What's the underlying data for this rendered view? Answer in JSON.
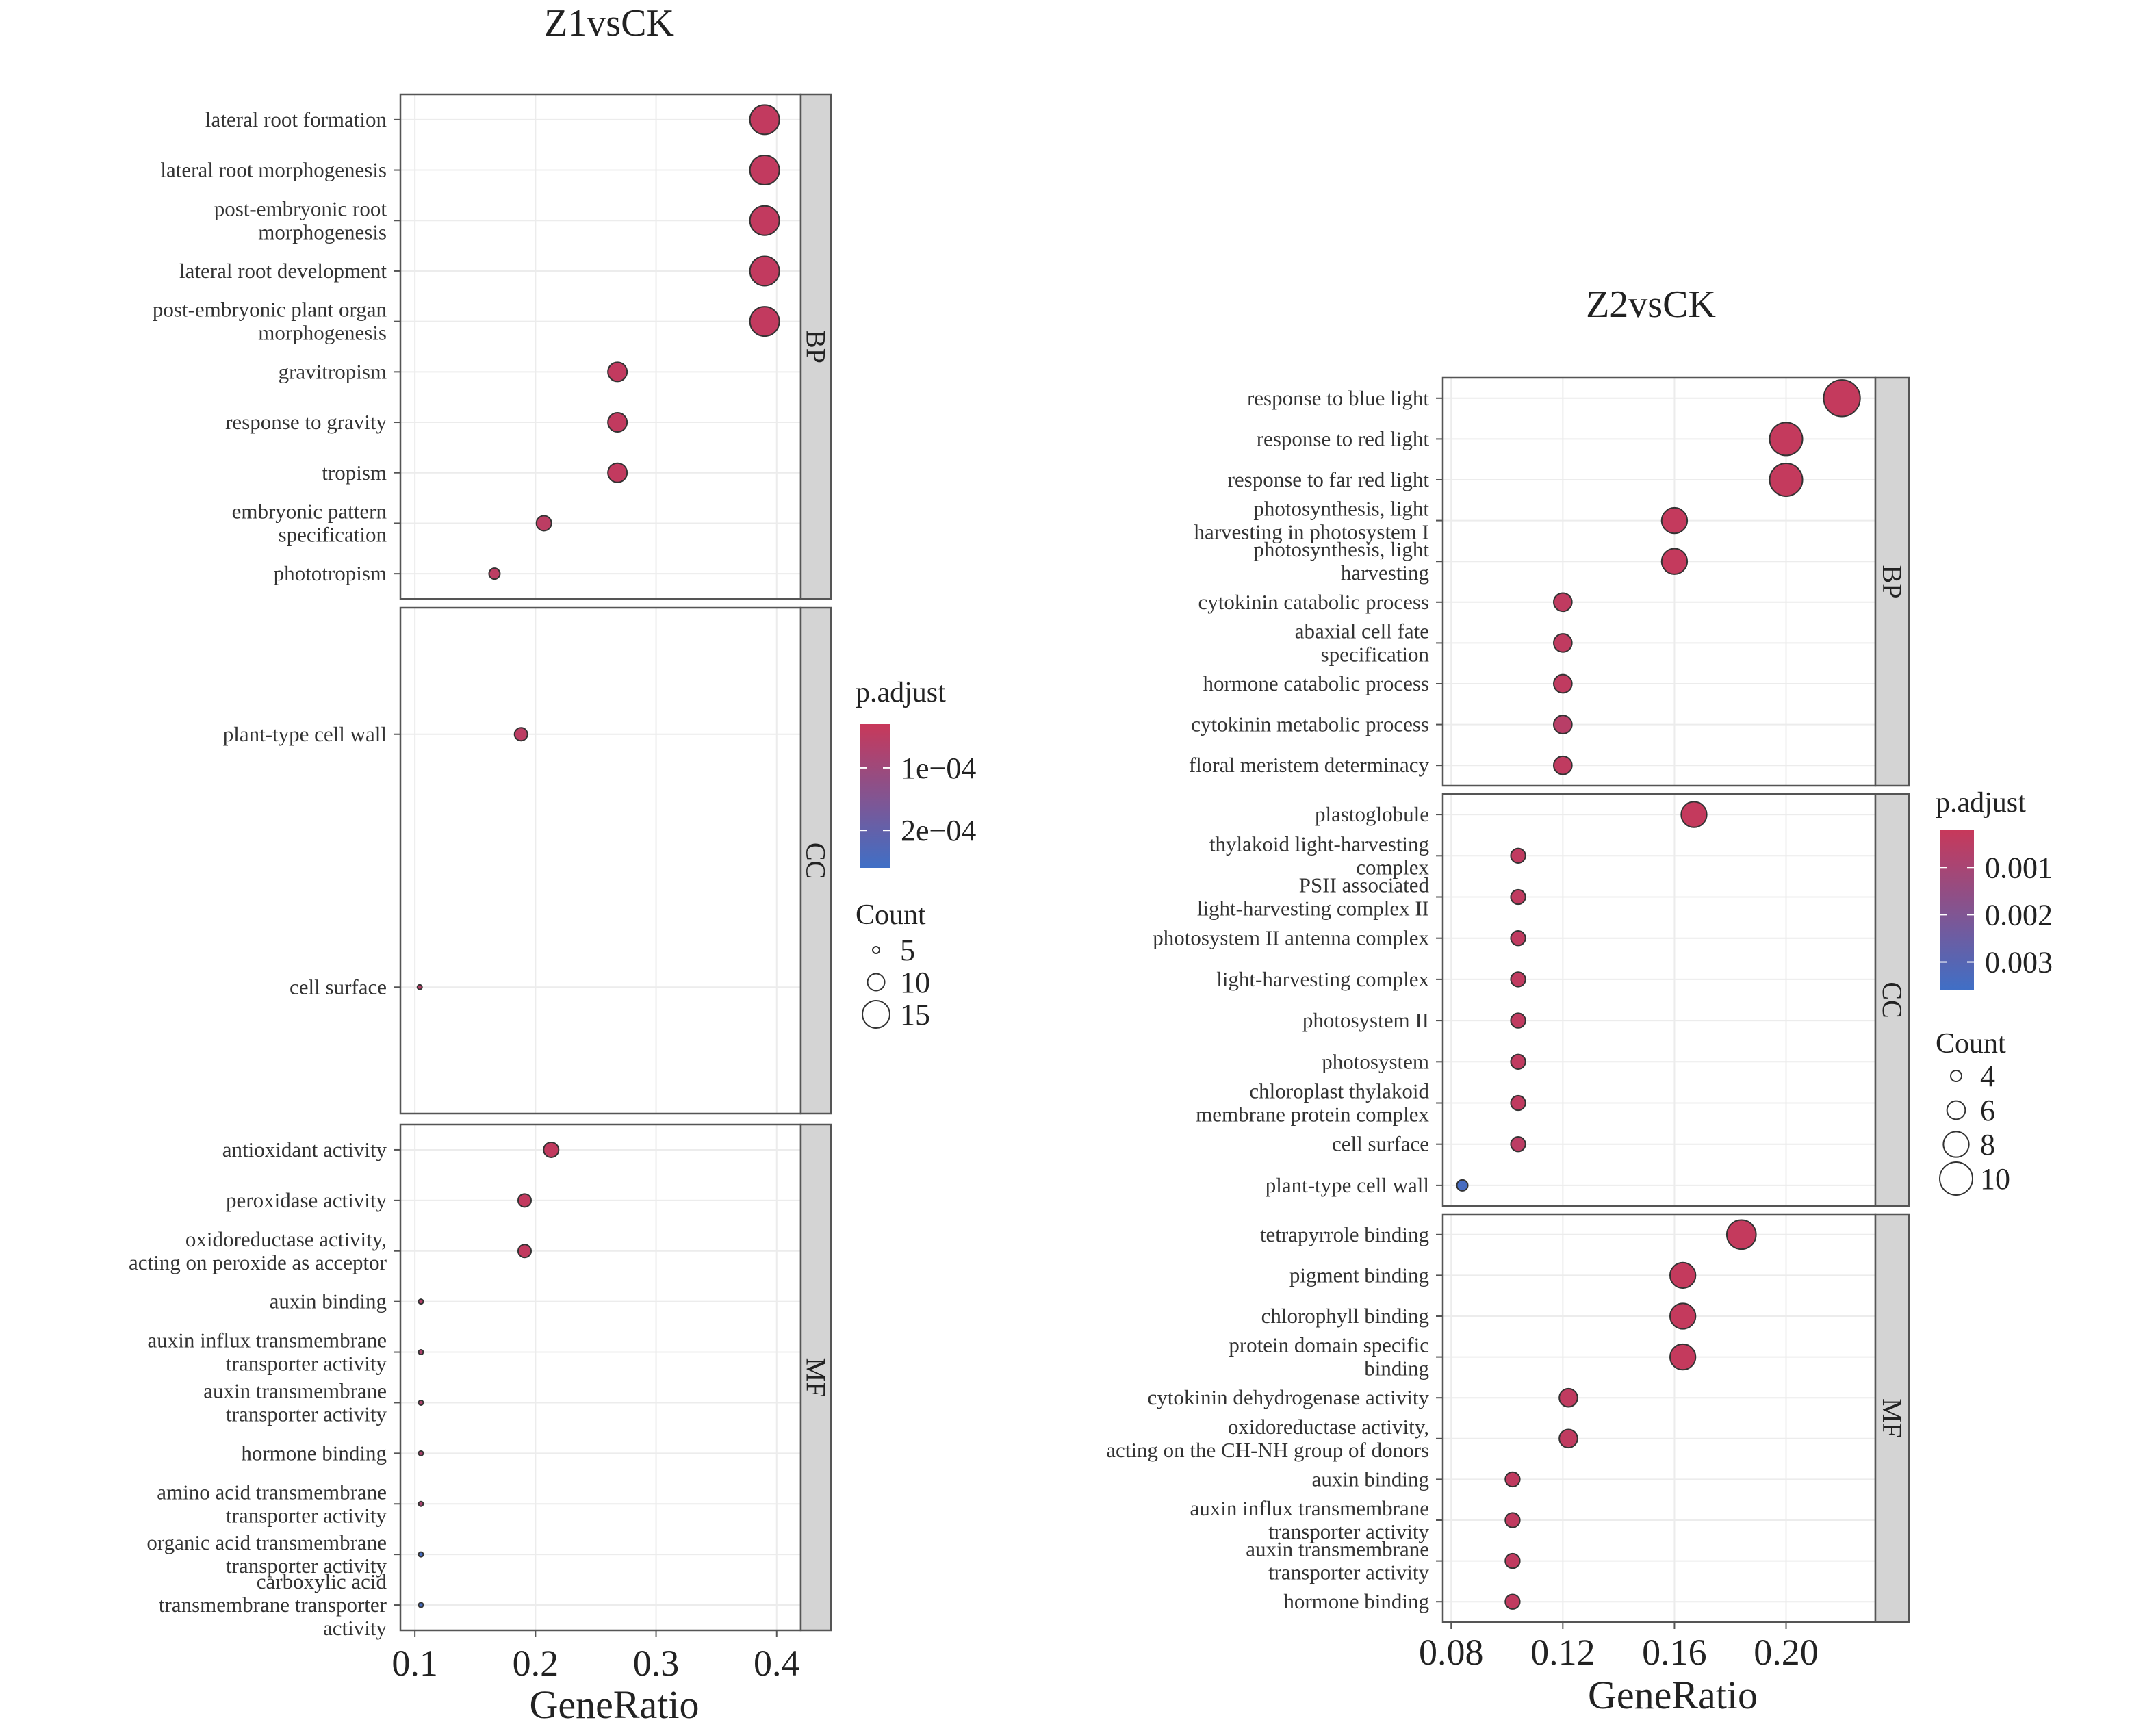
{
  "chart_data": [
    {
      "type": "scatter",
      "title": "Z1vsCK",
      "xlabel": "GeneRatio",
      "xlim": [
        0.088,
        0.42
      ],
      "x_ticks": [
        "0.1",
        "0.2",
        "0.3",
        "0.4"
      ],
      "x_tick_values": [
        0.1,
        0.2,
        0.3,
        0.4
      ],
      "grid": true,
      "colors": {
        "low_padj": "#c8385a",
        "high_padj": "#3f6fc6"
      },
      "color_legend": {
        "title": "p.adjust",
        "labels": [
          "1e−04",
          "2e−04"
        ],
        "values": [
          0.0001,
          0.0002
        ],
        "range": [
          3e-05,
          0.00026
        ]
      },
      "size_legend": {
        "title": "Count",
        "labels": [
          "5",
          "10",
          "15"
        ],
        "values": [
          5,
          10,
          15
        ]
      },
      "facets": [
        {
          "name": "BP",
          "points": [
            {
              "term": "lateral root formation",
              "x": 0.39,
              "count": 16,
              "padj": 4e-05
            },
            {
              "term": "lateral root morphogenesis",
              "x": 0.39,
              "count": 16,
              "padj": 4e-05
            },
            {
              "term": "post-embryonic root\nmorphogenesis",
              "x": 0.39,
              "count": 16,
              "padj": 4e-05
            },
            {
              "term": "lateral root development",
              "x": 0.39,
              "count": 16,
              "padj": 4e-05
            },
            {
              "term": "post-embryonic plant organ\nmorphogenesis",
              "x": 0.39,
              "count": 16,
              "padj": 4e-05
            },
            {
              "term": "gravitropism",
              "x": 0.268,
              "count": 11,
              "padj": 4e-05
            },
            {
              "term": "response to gravity",
              "x": 0.268,
              "count": 11,
              "padj": 4e-05
            },
            {
              "term": "tropism",
              "x": 0.268,
              "count": 11,
              "padj": 4e-05
            },
            {
              "term": "embryonic pattern\nspecification",
              "x": 0.207,
              "count": 9,
              "padj": 5e-05
            },
            {
              "term": "phototropism",
              "x": 0.166,
              "count": 7,
              "padj": 5e-05
            }
          ]
        },
        {
          "name": "CC",
          "points": [
            {
              "term": "plant-type cell wall",
              "x": 0.188,
              "count": 8,
              "padj": 5e-05
            },
            {
              "term": "cell surface",
              "x": 0.104,
              "count": 4,
              "padj": 6e-05
            }
          ]
        },
        {
          "name": "MF",
          "points": [
            {
              "term": "antioxidant activity",
              "x": 0.213,
              "count": 9,
              "padj": 4e-05
            },
            {
              "term": "peroxidase activity",
              "x": 0.191,
              "count": 8,
              "padj": 4e-05
            },
            {
              "term": "oxidoreductase activity,\nacting on peroxide as acceptor",
              "x": 0.191,
              "count": 8,
              "padj": 4e-05
            },
            {
              "term": "auxin binding",
              "x": 0.105,
              "count": 4,
              "padj": 6e-05
            },
            {
              "term": "auxin influx transmembrane\ntransporter activity",
              "x": 0.105,
              "count": 4,
              "padj": 7e-05
            },
            {
              "term": "auxin transmembrane\ntransporter activity",
              "x": 0.105,
              "count": 4,
              "padj": 7e-05
            },
            {
              "term": "hormone binding",
              "x": 0.105,
              "count": 4,
              "padj": 7e-05
            },
            {
              "term": "amino acid transmembrane\ntransporter activity",
              "x": 0.105,
              "count": 4,
              "padj": 8e-05
            },
            {
              "term": "organic acid transmembrane\ntransporter activity",
              "x": 0.105,
              "count": 4,
              "padj": 0.00025
            },
            {
              "term": "carboxylic acid\ntransmembrane transporter\nactivity",
              "x": 0.105,
              "count": 4,
              "padj": 0.00025
            }
          ]
        }
      ]
    },
    {
      "type": "scatter",
      "title": "Z2vsCK",
      "xlabel": "GeneRatio",
      "xlim": [
        0.077,
        0.232
      ],
      "x_ticks": [
        "0.08",
        "0.12",
        "0.16",
        "0.20"
      ],
      "x_tick_values": [
        0.08,
        0.12,
        0.16,
        0.2
      ],
      "grid": true,
      "colors": {
        "low_padj": "#c8385a",
        "high_padj": "#3f6fc6"
      },
      "color_legend": {
        "title": "p.adjust",
        "labels": [
          "0.001",
          "0.002",
          "0.003"
        ],
        "values": [
          0.001,
          0.002,
          0.003
        ],
        "range": [
          0.0002,
          0.0036
        ]
      },
      "size_legend": {
        "title": "Count",
        "labels": [
          "4",
          "6",
          "8",
          "10"
        ],
        "values": [
          4,
          6,
          8,
          10
        ]
      },
      "facets": [
        {
          "name": "BP",
          "points": [
            {
              "term": "response to blue light",
              "x": 0.22,
              "count": 11,
              "padj": 0.0003
            },
            {
              "term": "response to red light",
              "x": 0.2,
              "count": 10,
              "padj": 0.0003
            },
            {
              "term": "response to far red light",
              "x": 0.2,
              "count": 10,
              "padj": 0.0003
            },
            {
              "term": "photosynthesis, light\nharvesting in photosystem I",
              "x": 0.16,
              "count": 8,
              "padj": 0.0003
            },
            {
              "term": "photosynthesis, light\nharvesting",
              "x": 0.16,
              "count": 8,
              "padj": 0.0003
            },
            {
              "term": "cytokinin catabolic process",
              "x": 0.12,
              "count": 6,
              "padj": 0.0004
            },
            {
              "term": "abaxial cell fate\nspecification",
              "x": 0.12,
              "count": 6,
              "padj": 0.0004
            },
            {
              "term": "hormone catabolic process",
              "x": 0.12,
              "count": 6,
              "padj": 0.0004
            },
            {
              "term": "cytokinin metabolic process",
              "x": 0.12,
              "count": 6,
              "padj": 0.0006
            },
            {
              "term": "floral meristem determinacy",
              "x": 0.12,
              "count": 6,
              "padj": 0.0004
            }
          ]
        },
        {
          "name": "CC",
          "points": [
            {
              "term": "plastoglobule",
              "x": 0.167,
              "count": 8,
              "padj": 0.0003
            },
            {
              "term": "thylakoid light-harvesting\ncomplex",
              "x": 0.104,
              "count": 5,
              "padj": 0.0004
            },
            {
              "term": "PSII associated\nlight-harvesting complex II",
              "x": 0.104,
              "count": 5,
              "padj": 0.0004
            },
            {
              "term": "photosystem II antenna complex",
              "x": 0.104,
              "count": 5,
              "padj": 0.0004
            },
            {
              "term": "light-harvesting complex",
              "x": 0.104,
              "count": 5,
              "padj": 0.0004
            },
            {
              "term": "photosystem II",
              "x": 0.104,
              "count": 5,
              "padj": 0.0004
            },
            {
              "term": "photosystem",
              "x": 0.104,
              "count": 5,
              "padj": 0.0004
            },
            {
              "term": "chloroplast thylakoid\nmembrane protein complex",
              "x": 0.104,
              "count": 5,
              "padj": 0.0004
            },
            {
              "term": "cell surface",
              "x": 0.104,
              "count": 5,
              "padj": 0.0005
            },
            {
              "term": "plant-type cell wall",
              "x": 0.084,
              "count": 4,
              "padj": 0.0034
            }
          ]
        },
        {
          "name": "MF",
          "points": [
            {
              "term": "tetrapyrrole binding",
              "x": 0.184,
              "count": 9,
              "padj": 0.0003
            },
            {
              "term": "pigment binding",
              "x": 0.163,
              "count": 8,
              "padj": 0.0003
            },
            {
              "term": "chlorophyll binding",
              "x": 0.163,
              "count": 8,
              "padj": 0.0003
            },
            {
              "term": "protein domain specific\nbinding",
              "x": 0.163,
              "count": 8,
              "padj": 0.0003
            },
            {
              "term": "cytokinin dehydrogenase activity",
              "x": 0.122,
              "count": 6,
              "padj": 0.0004
            },
            {
              "term": "oxidoreductase activity,\nacting on the CH-NH group of donors",
              "x": 0.122,
              "count": 6,
              "padj": 0.0004
            },
            {
              "term": "auxin binding",
              "x": 0.102,
              "count": 5,
              "padj": 0.0004
            },
            {
              "term": "auxin influx transmembrane\ntransporter activity",
              "x": 0.102,
              "count": 5,
              "padj": 0.0004
            },
            {
              "term": "auxin transmembrane\ntransporter activity",
              "x": 0.102,
              "count": 5,
              "padj": 0.0004
            },
            {
              "term": "hormone binding",
              "x": 0.102,
              "count": 5,
              "padj": 0.0004
            }
          ]
        }
      ]
    }
  ]
}
